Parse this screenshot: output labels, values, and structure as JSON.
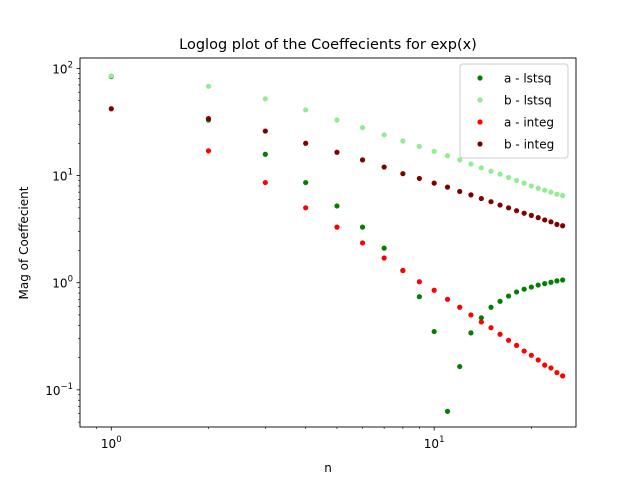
{
  "chart_data": {
    "type": "scatter",
    "title": "Loglog plot of the Coeffecients for exp(x)",
    "xlabel": "n",
    "ylabel": "Mag of Coeffecient",
    "xscale": "log",
    "yscale": "log",
    "xlim": [
      0.8,
      27.5
    ],
    "ylim": [
      0.045,
      125
    ],
    "x_ticks": [
      {
        "value": 1,
        "base": "10",
        "exp": "0"
      },
      {
        "value": 10,
        "base": "10",
        "exp": "1"
      }
    ],
    "y_ticks": [
      {
        "value": 0.1,
        "base": "10",
        "exp": "−1"
      },
      {
        "value": 1,
        "base": "10",
        "exp": "0"
      },
      {
        "value": 10,
        "base": "10",
        "exp": "1"
      },
      {
        "value": 100,
        "base": "10",
        "exp": "2"
      }
    ],
    "grid": false,
    "legend_position": "top-right",
    "series": [
      {
        "name": "a - lstsq",
        "color": "#008000",
        "x": [
          1,
          2,
          3,
          4,
          5,
          6,
          7,
          8,
          9,
          10,
          11,
          12,
          13,
          14,
          15,
          16,
          17,
          18,
          19,
          20,
          21,
          22,
          23,
          24,
          25
        ],
        "y": [
          84,
          33,
          15.8,
          8.6,
          5.2,
          3.3,
          2.1,
          1.3,
          0.74,
          0.35,
          0.063,
          0.165,
          0.34,
          0.47,
          0.59,
          0.67,
          0.75,
          0.82,
          0.87,
          0.91,
          0.95,
          0.98,
          1.01,
          1.04,
          1.06
        ]
      },
      {
        "name": "b - lstsq",
        "color": "#90ee90",
        "x": [
          1,
          2,
          3,
          4,
          5,
          6,
          7,
          8,
          9,
          10,
          11,
          12,
          13,
          14,
          15,
          16,
          17,
          18,
          19,
          20,
          21,
          22,
          23,
          24,
          25
        ],
        "y": [
          85,
          68,
          52,
          41,
          33,
          28,
          24,
          21,
          18.7,
          16.8,
          15.3,
          14,
          12.8,
          11.8,
          11,
          10.3,
          9.6,
          9,
          8.5,
          8,
          7.6,
          7.3,
          7,
          6.7,
          6.5
        ]
      },
      {
        "name": "a - integ",
        "color": "#ff0000",
        "x": [
          2,
          3,
          4,
          5,
          6,
          7,
          8,
          9,
          10,
          11,
          12,
          13,
          14,
          15,
          16,
          17,
          18,
          19,
          20,
          21,
          22,
          23,
          24,
          25
        ],
        "y": [
          17,
          8.6,
          5,
          3.3,
          2.35,
          1.7,
          1.3,
          1.02,
          0.85,
          0.7,
          0.59,
          0.5,
          0.43,
          0.38,
          0.33,
          0.29,
          0.26,
          0.23,
          0.21,
          0.19,
          0.17,
          0.16,
          0.145,
          0.135
        ]
      },
      {
        "name": "b - integ",
        "color": "#800000",
        "x": [
          1,
          2,
          3,
          4,
          5,
          6,
          7,
          8,
          9,
          10,
          11,
          12,
          13,
          14,
          15,
          16,
          17,
          18,
          19,
          20,
          21,
          22,
          23,
          24,
          25
        ],
        "y": [
          42,
          34,
          26,
          20,
          16.5,
          14,
          12,
          10.4,
          9.4,
          8.5,
          7.8,
          7.1,
          6.6,
          6.1,
          5.7,
          5.3,
          5,
          4.7,
          4.45,
          4.25,
          4.05,
          3.85,
          3.7,
          3.5,
          3.4
        ]
      }
    ]
  }
}
